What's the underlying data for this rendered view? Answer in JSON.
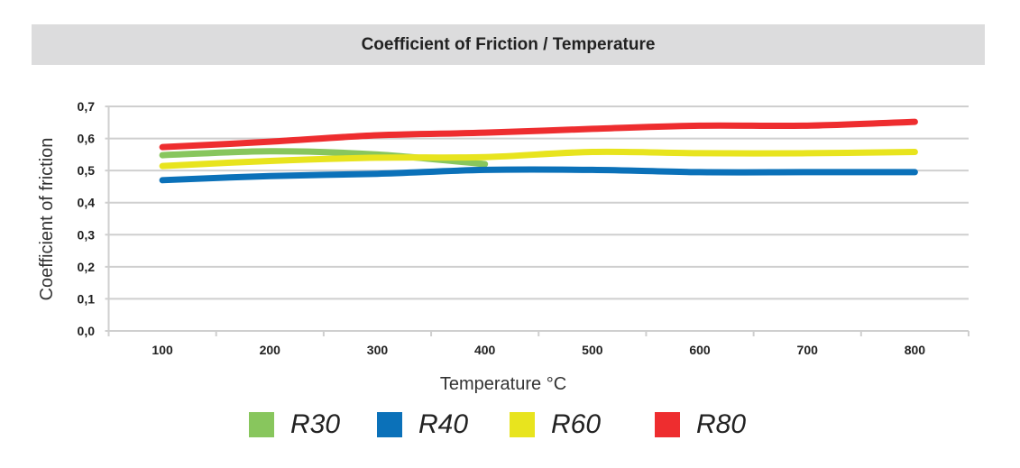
{
  "chart_data": {
    "type": "line",
    "title": "Coefficient of Friction / Temperature",
    "xlabel": "Temperature °C",
    "ylabel": "Coefficient of friction",
    "categories": [
      "100",
      "200",
      "300",
      "400",
      "500",
      "600",
      "700",
      "800"
    ],
    "yticks": [
      "0,0",
      "0,1",
      "0,2",
      "0,3",
      "0,4",
      "0,5",
      "0,6",
      "0,7"
    ],
    "ylim": [
      0,
      0.7
    ],
    "grid": true,
    "legend_position": "bottom",
    "series": [
      {
        "name": "R30",
        "color": "#88c65d",
        "values": [
          0.548,
          0.56,
          0.55,
          0.52,
          null,
          null,
          null,
          null
        ]
      },
      {
        "name": "R40",
        "color": "#0b71b9",
        "values": [
          0.47,
          0.483,
          0.49,
          0.502,
          0.502,
          0.495,
          0.495,
          0.495
        ]
      },
      {
        "name": "R60",
        "color": "#e8e41e",
        "values": [
          0.514,
          0.53,
          0.54,
          0.542,
          0.558,
          0.554,
          0.554,
          0.558
        ]
      },
      {
        "name": "R80",
        "color": "#ee2d2f",
        "values": [
          0.573,
          0.59,
          0.61,
          0.618,
          0.63,
          0.64,
          0.64,
          0.652
        ]
      }
    ]
  }
}
